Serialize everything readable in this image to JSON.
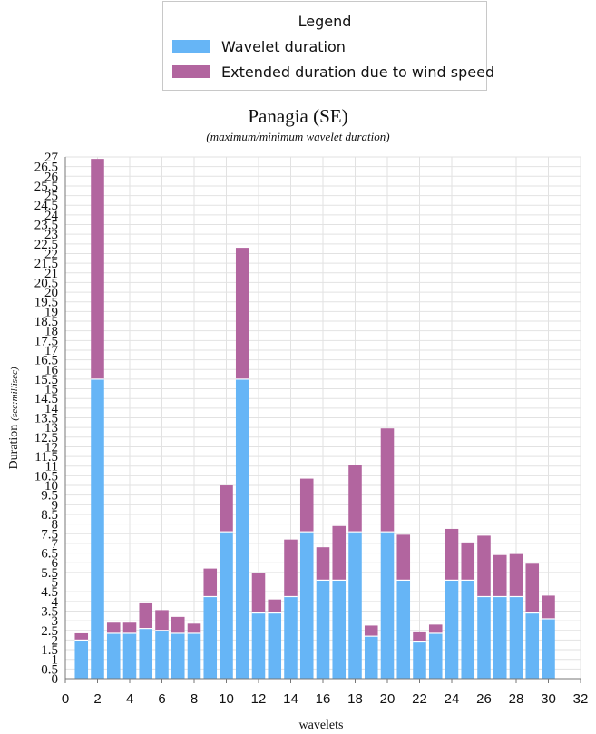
{
  "legend": {
    "title": "Legend",
    "items": [
      {
        "label": "Wavelet duration",
        "color": "#66b5f6"
      },
      {
        "label": "Extended duration due to wind speed",
        "color": "#b2659f"
      }
    ]
  },
  "chart_data": {
    "type": "bar",
    "stacked": true,
    "title": "Panagia (SE)",
    "subtitle": "(maximum/minimum wavelet duration)",
    "xlabel": "wavelets",
    "ylabel": "Duration",
    "ylabel_unit": "(sec:millisec)",
    "xlim": [
      0,
      32
    ],
    "ylim": [
      0,
      27
    ],
    "x_ticks": [
      0,
      2,
      4,
      6,
      8,
      10,
      12,
      14,
      16,
      18,
      20,
      22,
      24,
      26,
      28,
      30,
      32
    ],
    "y_ticks": [
      0,
      0.5,
      1,
      1.5,
      2,
      2.5,
      3,
      3.5,
      4,
      4.5,
      5,
      5.5,
      6,
      6.5,
      7,
      7.5,
      8,
      8.5,
      9,
      9.5,
      10,
      10.5,
      11,
      11.5,
      12,
      12.5,
      13,
      13.5,
      14,
      14.5,
      15,
      15.5,
      16,
      16.5,
      17,
      17.5,
      18,
      18.5,
      19,
      19.5,
      20,
      20.5,
      21,
      21.5,
      22,
      22.5,
      23,
      23.5,
      24,
      24.5,
      25,
      25.5,
      26,
      26.5,
      27
    ],
    "grid": true,
    "x": [
      1,
      2,
      3,
      4,
      5,
      6,
      7,
      8,
      9,
      10,
      11,
      12,
      13,
      14,
      15,
      16,
      17,
      18,
      19,
      20,
      21,
      22,
      23,
      24,
      25,
      26,
      27,
      28,
      29,
      30
    ],
    "series": [
      {
        "name": "Wavelet duration",
        "color": "#66b5f6",
        "values": [
          2.0,
          15.5,
          2.35,
          2.35,
          2.6,
          2.5,
          2.35,
          2.35,
          4.25,
          7.6,
          15.5,
          3.4,
          3.4,
          4.25,
          7.6,
          5.1,
          5.1,
          7.6,
          2.2,
          7.6,
          5.1,
          1.9,
          2.35,
          5.1,
          5.1,
          4.25,
          4.25,
          4.25,
          3.4,
          3.1
        ]
      },
      {
        "name": "Extended duration due to wind speed",
        "color": "#b2659f",
        "values": [
          0.35,
          11.4,
          0.55,
          0.55,
          1.3,
          1.05,
          0.85,
          0.5,
          1.45,
          2.4,
          6.8,
          2.05,
          0.7,
          2.95,
          2.75,
          1.7,
          2.8,
          3.45,
          0.55,
          5.35,
          2.35,
          0.5,
          0.45,
          2.65,
          1.95,
          3.15,
          2.15,
          2.2,
          2.55,
          1.2
        ]
      }
    ]
  }
}
